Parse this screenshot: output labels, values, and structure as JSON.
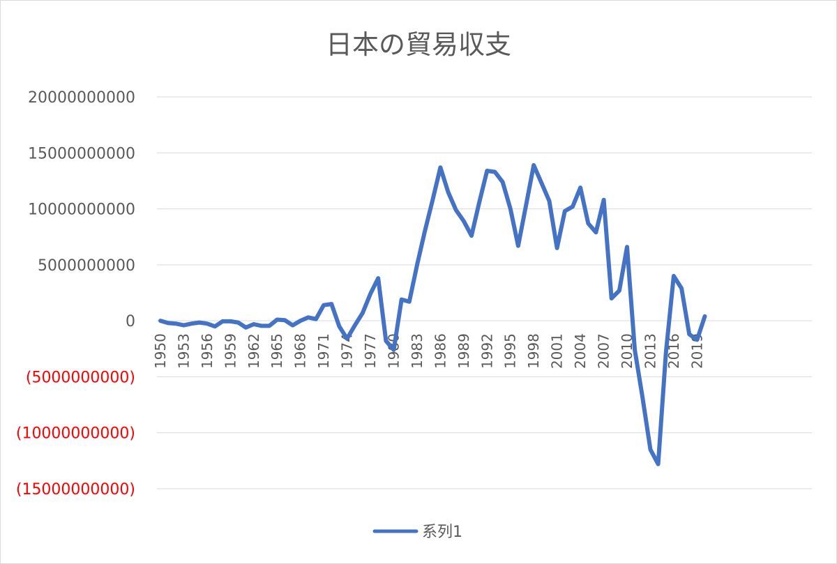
{
  "chart_data": {
    "type": "line",
    "title": "日本の貿易収支",
    "xlabel": "",
    "ylabel": "",
    "ylim": [
      -15000000000,
      20000000000
    ],
    "y_ticks": [
      {
        "value": 20000000000,
        "label": "20000000000"
      },
      {
        "value": 15000000000,
        "label": "15000000000"
      },
      {
        "value": 10000000000,
        "label": "10000000000"
      },
      {
        "value": 5000000000,
        "label": "5000000000"
      },
      {
        "value": 0,
        "label": "0"
      },
      {
        "value": -5000000000,
        "label": "(5000000000)"
      },
      {
        "value": -10000000000,
        "label": "(10000000000)"
      },
      {
        "value": -15000000000,
        "label": "(15000000000)"
      }
    ],
    "x_tick_labels": [
      "1950",
      "1953",
      "1956",
      "1959",
      "1962",
      "1965",
      "1968",
      "1971",
      "1974",
      "1977",
      "1980",
      "1983",
      "1986",
      "1989",
      "1992",
      "1995",
      "1998",
      "2001",
      "2004",
      "2007",
      "2010",
      "2013",
      "2016",
      "2019"
    ],
    "grid": true,
    "legend_position": "bottom",
    "colors": {
      "line": "#4472C4",
      "negative_label": "#FF0000",
      "grid": "#d9d9d9",
      "text": "#595959"
    },
    "x": [
      1950,
      1951,
      1952,
      1953,
      1954,
      1955,
      1956,
      1957,
      1958,
      1959,
      1960,
      1961,
      1962,
      1963,
      1964,
      1965,
      1966,
      1967,
      1968,
      1969,
      1970,
      1971,
      1972,
      1973,
      1974,
      1975,
      1976,
      1977,
      1978,
      1979,
      1980,
      1981,
      1982,
      1983,
      1984,
      1985,
      1986,
      1987,
      1988,
      1989,
      1990,
      1991,
      1992,
      1993,
      1994,
      1995,
      1996,
      1997,
      1998,
      1999,
      2000,
      2001,
      2002,
      2003,
      2004,
      2005,
      2006,
      2007,
      2008,
      2009,
      2010,
      2011,
      2012,
      2013,
      2014,
      2015,
      2016,
      2017,
      2018,
      2019,
      2020
    ],
    "series": [
      {
        "name": "系列1",
        "values": [
          0,
          -200000000,
          -250000000,
          -400000000,
          -250000000,
          -150000000,
          -250000000,
          -500000000,
          -50000000,
          -50000000,
          -150000000,
          -600000000,
          -300000000,
          -450000000,
          -450000000,
          100000000,
          50000000,
          -400000000,
          0,
          300000000,
          150000000,
          1400000000,
          1500000000,
          -500000000,
          -1600000000,
          -400000000,
          700000000,
          2400000000,
          3800000000,
          -1800000000,
          -2600000000,
          1900000000,
          1700000000,
          5000000000,
          8000000000,
          10800000000,
          13700000000,
          11500000000,
          9900000000,
          8900000000,
          7600000000,
          10600000000,
          13400000000,
          13300000000,
          12400000000,
          10000000000,
          6700000000,
          10300000000,
          13900000000,
          12300000000,
          10700000000,
          6500000000,
          9800000000,
          10200000000,
          11900000000,
          8700000000,
          7900000000,
          10800000000,
          2000000000,
          2700000000,
          6600000000,
          -2600000000,
          -6900000000,
          -11500000000,
          -12800000000,
          -2800000000,
          4000000000,
          2900000000,
          -1200000000,
          -1700000000,
          400000000
        ]
      }
    ]
  }
}
